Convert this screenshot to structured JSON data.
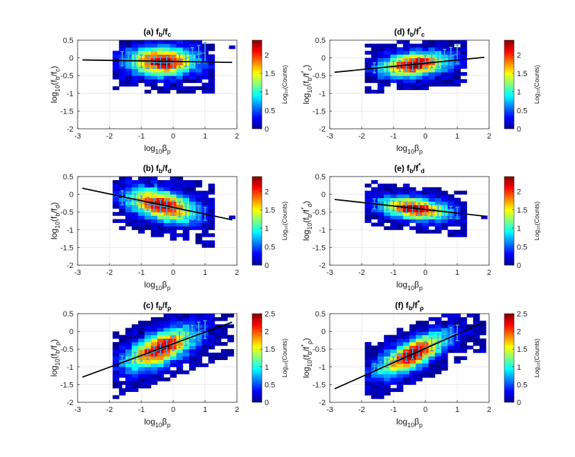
{
  "colors": {
    "fit_line": "#000000",
    "error_bar": "#3fa9e0",
    "grid": "#e6e6e6",
    "axis": "#262626"
  },
  "chart_data": [
    {
      "id": "a",
      "type": "heatmap",
      "title": "(a) f_b/f_c",
      "title_parts": [
        "(a) f",
        "b",
        "/f",
        "c"
      ],
      "xlabel_parts": [
        "log",
        "10",
        "β",
        "p"
      ],
      "ylabel_parts": [
        "log",
        "10",
        "(f",
        "b",
        "/f",
        "c",
        ")"
      ],
      "xlim": [
        -3,
        2
      ],
      "ylim": [
        -2,
        0.5
      ],
      "xticks": [
        "-3",
        "-2",
        "-1",
        "0",
        "1",
        "2"
      ],
      "yticks": [
        "-2",
        "-1.5",
        "-1",
        "-0.5",
        "0",
        "0.5"
      ],
      "colorbar": {
        "label": "Log₁₀(Counts)",
        "range": [
          0,
          2.4
        ],
        "ticks": [
          "0",
          "0.5",
          "1",
          "1.5",
          "2"
        ]
      },
      "fit": {
        "x0": -2.85,
        "x1": 1.85,
        "slope": -0.015,
        "intercept": -0.1
      },
      "errorbars": {
        "x": [
          -1.6,
          -1.4,
          -1.2,
          -1.0,
          -0.8,
          -0.6,
          -0.4,
          -0.2,
          0.0,
          0.2,
          0.4,
          0.6,
          0.8,
          1.0
        ],
        "y": [
          -0.02,
          -0.05,
          -0.08,
          -0.1,
          -0.12,
          -0.13,
          -0.14,
          -0.14,
          -0.12,
          -0.08,
          -0.02,
          0.05,
          0.1,
          0.15
        ],
        "err": [
          0.2,
          0.2,
          0.19,
          0.18,
          0.18,
          0.17,
          0.17,
          0.18,
          0.18,
          0.2,
          0.22,
          0.24,
          0.25,
          0.28
        ]
      },
      "density": {
        "spread": 0.27,
        "xmin": -1.9,
        "xmax": 1.3,
        "peak": -0.35,
        "seed": 11,
        "outliers": [
          [
            1.85,
            0.3
          ]
        ]
      }
    },
    {
      "id": "b",
      "type": "heatmap",
      "title": "(b) f_b/f_d",
      "title_parts": [
        "(b) f",
        "b",
        "/f",
        "d"
      ],
      "xlabel_parts": [
        "log",
        "10",
        "β",
        "p"
      ],
      "ylabel_parts": [
        "log",
        "10",
        "(f",
        "b",
        "/f",
        "d",
        ")"
      ],
      "xlim": [
        -3,
        2
      ],
      "ylim": [
        -2,
        0.5
      ],
      "xticks": [
        "-3",
        "-2",
        "-1",
        "0",
        "1",
        "2"
      ],
      "yticks": [
        "-2",
        "-1.5",
        "-1",
        "-0.5",
        "0",
        "0.5"
      ],
      "colorbar": {
        "label": "Log₁₀(Counts)",
        "range": [
          0,
          2.4
        ],
        "ticks": [
          "0",
          "0.5",
          "1",
          "1.5",
          "2"
        ]
      },
      "fit": {
        "x0": -2.85,
        "x1": 1.85,
        "slope": -0.19,
        "intercept": -0.37
      },
      "errorbars": {
        "x": [
          -1.6,
          -1.4,
          -1.2,
          -1.0,
          -0.8,
          -0.6,
          -0.4,
          -0.2,
          0.0,
          0.2,
          0.4,
          0.6,
          0.8,
          1.0
        ],
        "y": [
          -0.1,
          -0.14,
          -0.18,
          -0.23,
          -0.27,
          -0.3,
          -0.33,
          -0.36,
          -0.39,
          -0.43,
          -0.47,
          -0.5,
          -0.52,
          -0.55
        ],
        "err": [
          0.2,
          0.2,
          0.19,
          0.18,
          0.18,
          0.18,
          0.18,
          0.19,
          0.2,
          0.21,
          0.22,
          0.22,
          0.2,
          0.18
        ]
      },
      "density": {
        "spread": 0.28,
        "xmin": -1.9,
        "xmax": 1.3,
        "peak": -0.35,
        "seed": 23,
        "outliers": [
          [
            1.85,
            -0.65
          ],
          [
            -0.7,
            0.25
          ]
        ]
      }
    },
    {
      "id": "c",
      "type": "heatmap",
      "title": "(c) f_b/f_ρ",
      "title_parts": [
        "(c) f",
        "b",
        "/f",
        "ρ"
      ],
      "xlabel_parts": [
        "log",
        "10",
        "β",
        "p"
      ],
      "ylabel_parts": [
        "log",
        "10",
        "(f",
        "b",
        "/f",
        "ρ",
        ")"
      ],
      "xlim": [
        -3,
        2
      ],
      "ylim": [
        -2,
        0.5
      ],
      "xticks": [
        "-3",
        "-2",
        "-1",
        "0",
        "1",
        "2"
      ],
      "yticks": [
        "-2",
        "-1.5",
        "-1",
        "-0.5",
        "0",
        "0.5"
      ],
      "colorbar": {
        "label": "Log₁₀(Counts)",
        "range": [
          0,
          2.5
        ],
        "ticks": [
          "0",
          "0.5",
          "1",
          "1.5",
          "2",
          "2.5"
        ]
      },
      "fit": {
        "x0": -2.85,
        "x1": 1.85,
        "slope": 0.33,
        "intercept": -0.35
      },
      "errorbars": {
        "x": [
          -1.6,
          -1.4,
          -1.2,
          -1.0,
          -0.8,
          -0.6,
          -0.4,
          -0.2,
          0.0,
          0.2,
          0.4,
          0.6,
          0.8,
          1.0
        ],
        "y": [
          -0.82,
          -0.78,
          -0.74,
          -0.7,
          -0.64,
          -0.58,
          -0.5,
          -0.43,
          -0.34,
          -0.24,
          -0.16,
          -0.08,
          0.0,
          0.05
        ],
        "err": [
          0.13,
          0.13,
          0.14,
          0.14,
          0.15,
          0.16,
          0.17,
          0.18,
          0.2,
          0.22,
          0.24,
          0.25,
          0.26,
          0.25
        ]
      },
      "density": {
        "spread": 0.3,
        "xmin": -1.9,
        "xmax": 1.9,
        "peak": -0.4,
        "seed": 37,
        "outliers": [
          [
            -1.7,
            -1.55
          ]
        ]
      }
    },
    {
      "id": "d",
      "type": "heatmap",
      "title": "(d) f_b/f_c*",
      "title_parts": [
        "(d) f",
        "b",
        "/f",
        "c",
        "*"
      ],
      "xlabel_parts": [
        "log",
        "10",
        "β",
        "p"
      ],
      "ylabel_parts": [
        "log",
        "10",
        "(f",
        "b",
        "/f",
        "c",
        "*",
        ")"
      ],
      "xlim": [
        -3,
        2
      ],
      "ylim": [
        -2,
        0.5
      ],
      "xticks": [
        "-3",
        "-2",
        "-1",
        "0",
        "1",
        "2"
      ],
      "yticks": [
        "-2",
        "-1.5",
        "-1",
        "-0.5",
        "0",
        "0.5"
      ],
      "colorbar": {
        "label": "Log₁₀(Counts)",
        "range": [
          0,
          2.4
        ],
        "ticks": [
          "0",
          "0.5",
          "1",
          "1.5",
          "2"
        ]
      },
      "fit": {
        "x0": -2.85,
        "x1": 1.85,
        "slope": 0.09,
        "intercept": -0.15
      },
      "errorbars": {
        "x": [
          -1.6,
          -1.4,
          -1.2,
          -1.0,
          -0.8,
          -0.6,
          -0.4,
          -0.2,
          0.0,
          0.2,
          0.4,
          0.6,
          0.8,
          1.0
        ],
        "y": [
          -0.28,
          -0.27,
          -0.26,
          -0.25,
          -0.23,
          -0.21,
          -0.19,
          -0.16,
          -0.12,
          -0.08,
          -0.04,
          0.0,
          0.05,
          0.1
        ],
        "err": [
          0.14,
          0.14,
          0.14,
          0.15,
          0.15,
          0.15,
          0.16,
          0.17,
          0.18,
          0.2,
          0.22,
          0.24,
          0.25,
          0.26
        ]
      },
      "density": {
        "spread": 0.22,
        "xmin": -1.9,
        "xmax": 1.3,
        "peak": -0.35,
        "seed": 53,
        "outliers": []
      }
    },
    {
      "id": "e",
      "type": "heatmap",
      "title": "(e) f_b/f_d*",
      "title_parts": [
        "(e) f",
        "b",
        "/f",
        "d",
        "*"
      ],
      "xlabel_parts": [
        "log",
        "10",
        "β",
        "p"
      ],
      "ylabel_parts": [
        "log",
        "10",
        "(f",
        "b",
        "/f",
        "d",
        "*",
        ")"
      ],
      "xlim": [
        -3,
        2
      ],
      "ylim": [
        -2,
        0.5
      ],
      "xticks": [
        "-3",
        "-2",
        "-1",
        "0",
        "1",
        "2"
      ],
      "yticks": [
        "-2",
        "-1.5",
        "-1",
        "-0.5",
        "0",
        "0.5"
      ],
      "colorbar": {
        "label": "Log₁₀(Counts)",
        "range": [
          0,
          2.4
        ],
        "ticks": [
          "0",
          "0.5",
          "1",
          "1.5",
          "2"
        ]
      },
      "fit": {
        "x0": -2.85,
        "x1": 1.85,
        "slope": -0.1,
        "intercept": -0.43
      },
      "errorbars": {
        "x": [
          -1.6,
          -1.4,
          -1.2,
          -1.0,
          -0.8,
          -0.6,
          -0.4,
          -0.2,
          0.0,
          0.2,
          0.4,
          0.6,
          0.8,
          1.0
        ],
        "y": [
          -0.27,
          -0.29,
          -0.31,
          -0.33,
          -0.35,
          -0.37,
          -0.39,
          -0.41,
          -0.43,
          -0.45,
          -0.47,
          -0.49,
          -0.51,
          -0.53
        ],
        "err": [
          0.14,
          0.14,
          0.14,
          0.14,
          0.15,
          0.15,
          0.15,
          0.16,
          0.16,
          0.17,
          0.18,
          0.18,
          0.17,
          0.16
        ]
      },
      "density": {
        "spread": 0.2,
        "xmin": -1.9,
        "xmax": 1.3,
        "peak": -0.35,
        "seed": 71,
        "outliers": [
          [
            1.85,
            -0.65
          ]
        ]
      }
    },
    {
      "id": "f",
      "type": "heatmap",
      "title": "(f) f_b/f_ρ*",
      "title_parts": [
        "(f) f",
        "b",
        "/f",
        "ρ",
        "*"
      ],
      "xlabel_parts": [
        "log",
        "10",
        "β",
        "p"
      ],
      "ylabel_parts": [
        "log",
        "10",
        "(f",
        "b",
        "/f",
        "ρ",
        "*",
        ")"
      ],
      "xlim": [
        -3,
        2
      ],
      "ylim": [
        -2,
        0.5
      ],
      "xticks": [
        "-3",
        "-2",
        "-1",
        "0",
        "1",
        "2"
      ],
      "yticks": [
        "-2",
        "-1.5",
        "-1",
        "-0.5",
        "0",
        "0.5"
      ],
      "colorbar": {
        "label": "Log₁₀(Counts)",
        "range": [
          0,
          2.5
        ],
        "ticks": [
          "0",
          "0.5",
          "1",
          "1.5",
          "2",
          "2.5"
        ]
      },
      "fit": {
        "x0": -2.85,
        "x1": 1.85,
        "slope": 0.4,
        "intercept": -0.48
      },
      "errorbars": {
        "x": [
          -1.6,
          -1.4,
          -1.2,
          -1.0,
          -0.8,
          -0.6,
          -0.4,
          -0.2,
          0.0,
          0.2,
          0.4,
          0.6,
          0.8,
          1.0
        ],
        "y": [
          -1.0,
          -0.96,
          -0.9,
          -0.84,
          -0.78,
          -0.71,
          -0.63,
          -0.55,
          -0.46,
          -0.37,
          -0.28,
          -0.2,
          -0.11,
          -0.04
        ],
        "err": [
          0.1,
          0.11,
          0.12,
          0.12,
          0.13,
          0.14,
          0.15,
          0.16,
          0.17,
          0.18,
          0.2,
          0.21,
          0.22,
          0.22
        ]
      },
      "density": {
        "spread": 0.27,
        "xmin": -1.9,
        "xmax": 1.9,
        "peak": -0.4,
        "seed": 89,
        "outliers": [
          [
            -1.7,
            -1.7
          ]
        ]
      }
    }
  ]
}
